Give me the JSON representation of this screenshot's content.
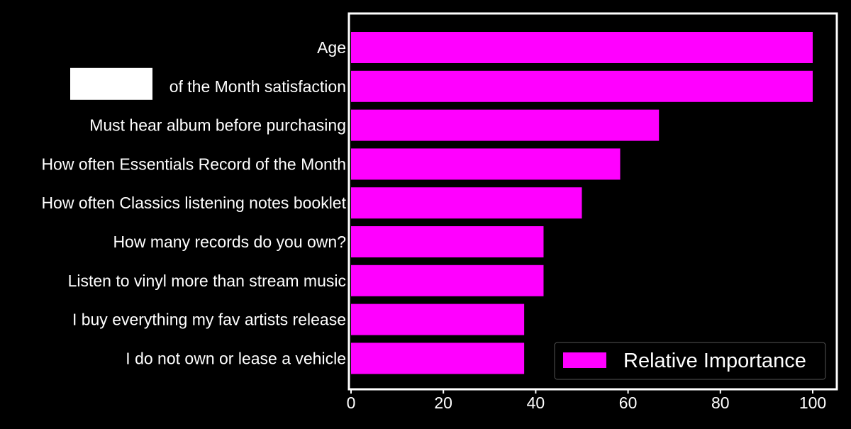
{
  "chart_data": {
    "type": "bar",
    "orientation": "horizontal",
    "categories": [
      "Age",
      "of the Month satisfaction",
      "Must hear album before purchasing",
      "How often Essentials Record of the Month",
      "How often Classics listening notes booklet",
      "How many records do you own?",
      "Listen to vinyl more than stream music",
      "I buy everything my fav artists release",
      "I do not own or lease a vehicle"
    ],
    "series": [
      {
        "name": "Relative Importance",
        "values": [
          100,
          100,
          66.7,
          58.3,
          50,
          41.7,
          41.7,
          37.5,
          37.5
        ]
      }
    ],
    "xlim": [
      0,
      105
    ],
    "xticks": [
      0,
      20,
      40,
      60,
      80,
      100
    ],
    "xlabel": "",
    "ylabel": "",
    "title": "",
    "grid": false,
    "legend": {
      "placement": "bottom-right",
      "entries": [
        "Relative Importance"
      ]
    },
    "redacted_label_prefix_index": 1
  },
  "colors": {
    "background": "#000000",
    "bar": "#ff00ff",
    "axes": "#ffffff",
    "text": "#ffffff"
  }
}
